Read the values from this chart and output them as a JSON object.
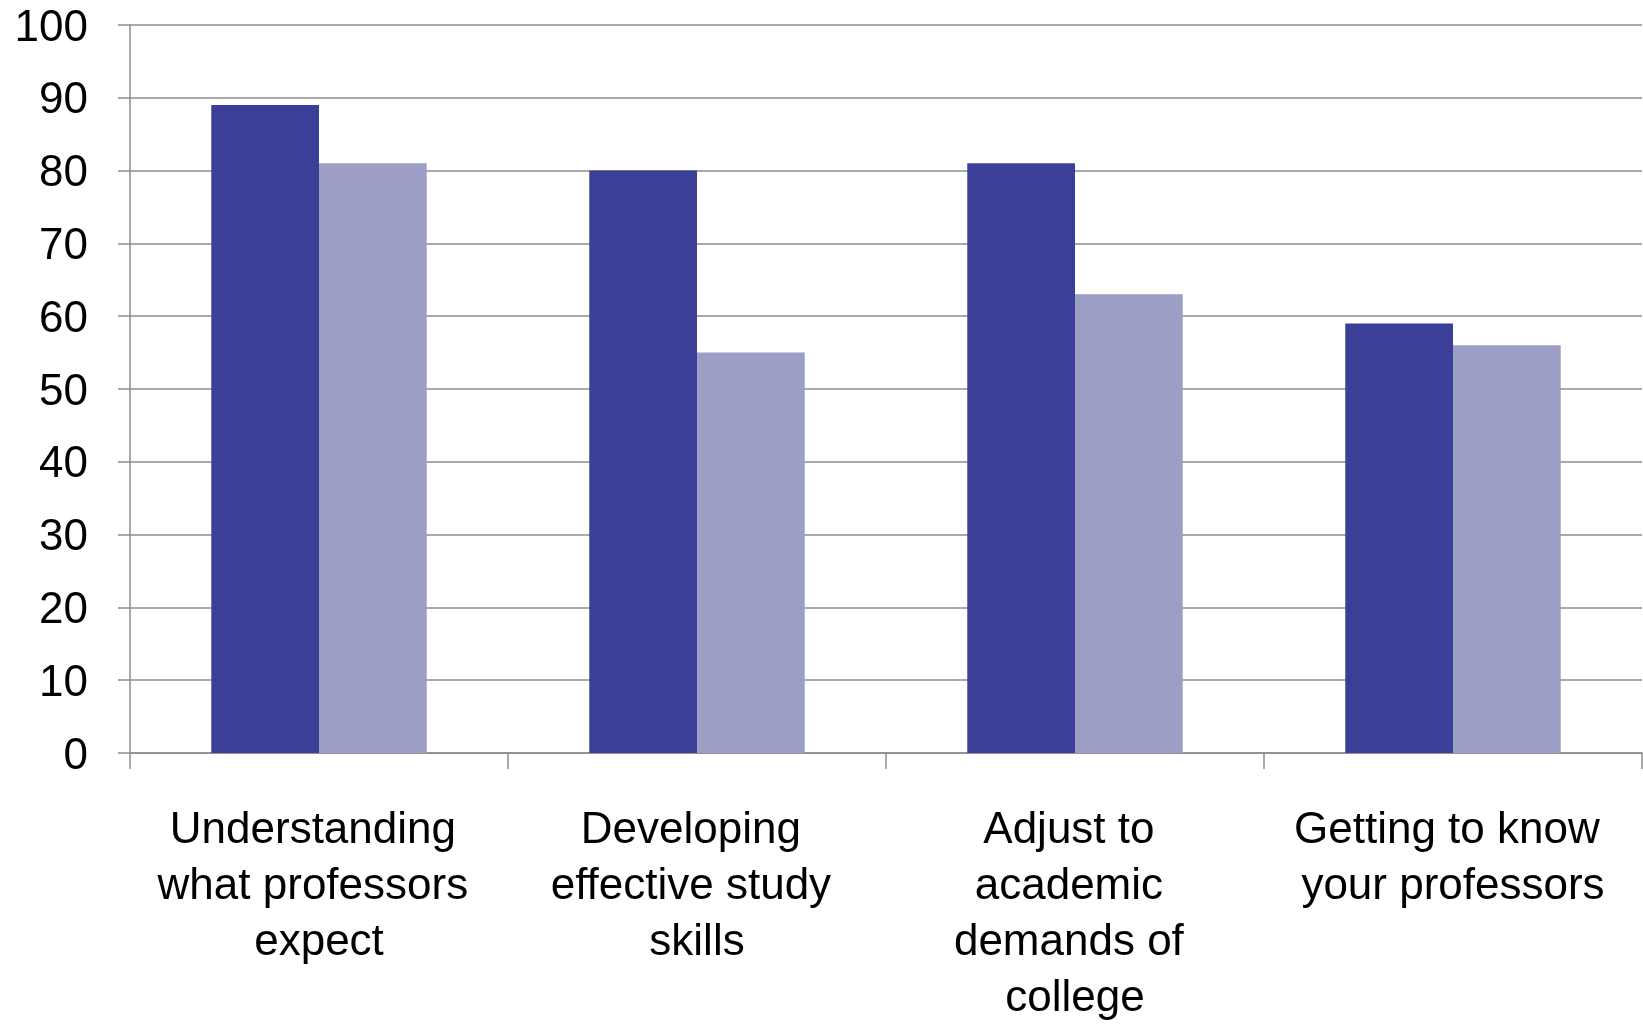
{
  "chart_data": {
    "type": "bar",
    "categories": [
      "Understanding what professors expect",
      "Developing effective study skills",
      "Adjust to academic demands of college",
      "Getting to know your professors"
    ],
    "series": [
      {
        "color": "#3b3f97",
        "values": [
          89,
          80,
          81,
          59
        ]
      },
      {
        "color": "#9c9ec5",
        "values": [
          81,
          55,
          63,
          56
        ]
      }
    ],
    "ylim": [
      0,
      100
    ],
    "yticks": [
      0,
      10,
      20,
      30,
      40,
      50,
      60,
      70,
      80,
      90,
      100
    ],
    "grid": "y"
  }
}
